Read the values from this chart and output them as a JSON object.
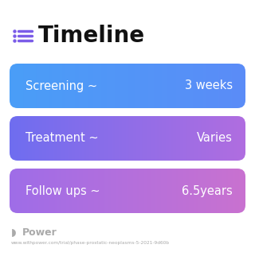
{
  "title": "Timeline",
  "title_fontsize": 20,
  "title_fontweight": "bold",
  "title_color": "#111111",
  "background_color": "#ffffff",
  "rows": [
    {
      "label": "Screening ~",
      "value": "3 weeks",
      "color_left": "#4a9ef8",
      "color_right": "#5b8cf7"
    },
    {
      "label": "Treatment ~",
      "value": "Varies",
      "color_left": "#6f6ef0",
      "color_right": "#b06de0"
    },
    {
      "label": "Follow ups ~",
      "value": "6.5years",
      "color_left": "#9f6de8",
      "color_right": "#c972d0"
    }
  ],
  "icon_color": "#7b5ce8",
  "footer_text": "Power",
  "footer_url": "www.withpower.com/trial/phase-prostatic-neoplasms-5-2021-9d60b",
  "footer_color": "#aaaaaa",
  "label_fontsize": 10.5,
  "value_fontsize": 10.5
}
